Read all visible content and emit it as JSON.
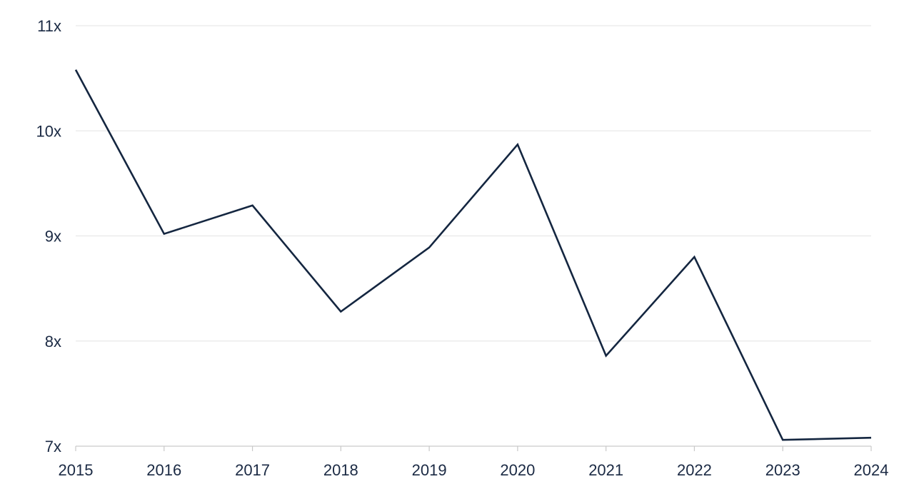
{
  "chart_data": {
    "type": "line",
    "title": "",
    "xlabel": "",
    "ylabel": "",
    "categories": [
      "2015",
      "2016",
      "2017",
      "2018",
      "2019",
      "2020",
      "2021",
      "2022",
      "2023",
      "2024"
    ],
    "y_tick_values": [
      7,
      8,
      9,
      10,
      11
    ],
    "y_tick_labels": [
      "7x",
      "8x",
      "9x",
      "10x",
      "11x"
    ],
    "ylim": [
      7,
      11
    ],
    "grid": true,
    "legend": "none",
    "line_color": "#142640",
    "series": [
      {
        "values": [
          10.58,
          9.02,
          9.29,
          8.28,
          8.89,
          9.87,
          7.86,
          8.8,
          7.06,
          7.08
        ]
      }
    ]
  }
}
